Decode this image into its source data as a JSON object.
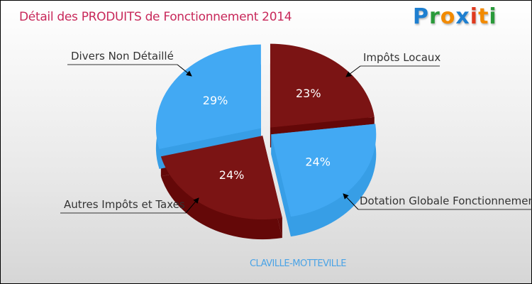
{
  "chart_data": {
    "type": "pie",
    "title": "Détail des PRODUITS de Fonctionnement 2014",
    "subtitle": "CLAVILLE-MOTTEVILLE",
    "slices": [
      {
        "label": "Impôts Locaux",
        "value": 23,
        "pct_label": "23%",
        "color": "#7b1414",
        "side": "#640808"
      },
      {
        "label": "Dotation Globale Fonctionnement",
        "value": 24,
        "pct_label": "24%",
        "color": "#42a9f3",
        "side": "#379ee6"
      },
      {
        "label": "Autres Impôts et Taxes",
        "value": 24,
        "pct_label": "24%",
        "color": "#7b1414",
        "side": "#640808"
      },
      {
        "label": "Divers Non Détaillé",
        "value": 29,
        "pct_label": "29%",
        "color": "#42a9f3",
        "side": "#379ee6"
      }
    ]
  },
  "logo": {
    "text": "Proxiti",
    "letters": [
      "P",
      "r",
      "o",
      "x",
      "i",
      "t",
      "i"
    ],
    "colors": [
      "#1e7fd0",
      "#2a9a3a",
      "#f28a00",
      "#1e7fd0",
      "#e03a1e",
      "#f28a00",
      "#2a9a3a"
    ]
  }
}
